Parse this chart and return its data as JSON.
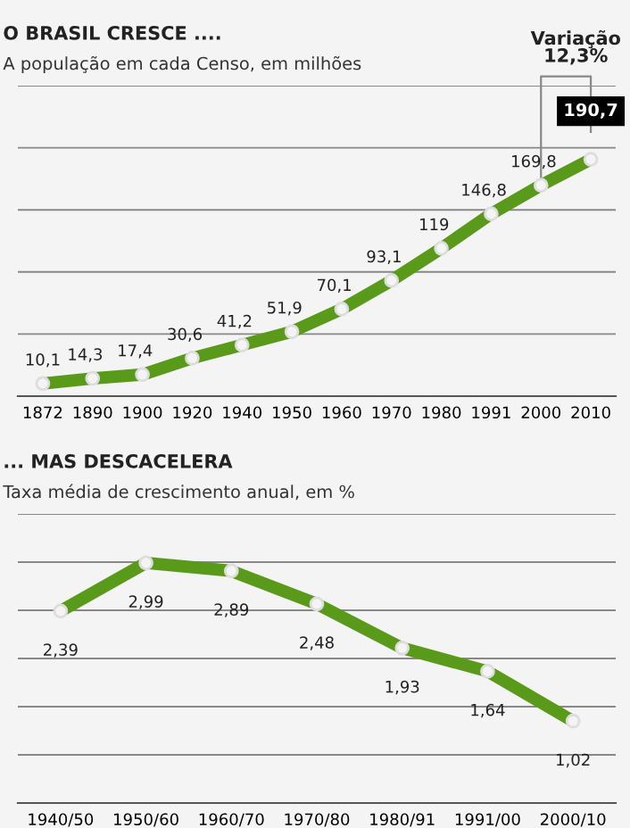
{
  "chart_data": [
    {
      "type": "line",
      "title": "O BRASIL CRESCE ....",
      "subtitle": "A população em cada Censo, em milhões",
      "categories": [
        "1872",
        "1890",
        "1900",
        "1920",
        "1940",
        "1950",
        "1960",
        "1970",
        "1980",
        "1991",
        "2000",
        "2010"
      ],
      "series": [
        {
          "color": "#5a9a1a",
          "values": [
            10.1,
            14.3,
            17.4,
            30.6,
            41.2,
            51.9,
            70.1,
            93.1,
            119,
            146.8,
            169.8,
            190.7
          ],
          "value_labels": [
            "10,1",
            "14,3",
            "17,4",
            "30,6",
            "41,2",
            "51,9",
            "70,1",
            "93,1",
            "119",
            "146,8",
            "169,8",
            "190,7"
          ]
        }
      ],
      "annotations": [
        "Variação\n12,3%"
      ],
      "ylim": [
        0,
        250
      ],
      "yticks": [
        {
          "value": 0,
          "label": null
        },
        {
          "value": 50,
          "label": null
        },
        {
          "value": 100,
          "label": null
        },
        {
          "value": 150,
          "label": null
        },
        {
          "value": 200,
          "label": null
        },
        {
          "value": 250,
          "label": null
        }
      ],
      "grid": "y",
      "tick_labels": "x",
      "marker": "circle",
      "line_style": "solid",
      "legend": false
    },
    {
      "type": "line",
      "title": "... MAS DESCACELERA",
      "subtitle": "Taxa média de crescimento anual, em %",
      "categories": [
        "1940/50",
        "1950/60",
        "1960/70",
        "1970/80",
        "1980/91",
        "1991/00",
        "2000/10"
      ],
      "series": [
        {
          "color": "#5a9a1a",
          "values": [
            2.39,
            2.99,
            2.89,
            2.48,
            1.93,
            1.64,
            1.02
          ],
          "value_labels": [
            "2,39",
            "2,99",
            "2,89",
            "2,48",
            "1,93",
            "1,64",
            "1,02"
          ]
        }
      ],
      "ylim": [
        0,
        3.6
      ],
      "yticks": [
        {
          "value": 0,
          "label": null
        },
        {
          "value": 0.6,
          "label": null
        },
        {
          "value": 1.2,
          "label": null
        },
        {
          "value": 1.8,
          "label": null
        },
        {
          "value": 2.4,
          "label": null
        },
        {
          "value": 3.0,
          "label": null
        },
        {
          "value": 3.6,
          "label": null
        }
      ],
      "grid": "y",
      "tick_labels": "x",
      "marker": "circle",
      "line_style": "solid",
      "legend": false
    }
  ]
}
